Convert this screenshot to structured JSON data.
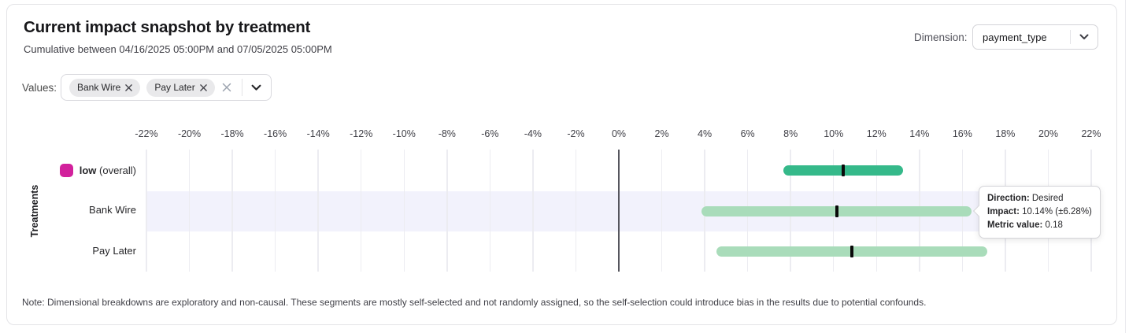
{
  "header": {
    "title": "Current impact snapshot by treatment",
    "subtitle": "Cumulative between 04/16/2025 05:00PM and 07/05/2025 05:00PM",
    "dimension_label": "Dimension:",
    "dimension_value": "payment_type"
  },
  "filters": {
    "values_label": "Values:",
    "chips": [
      "Bank Wire",
      "Pay Later"
    ]
  },
  "chart_data": {
    "type": "bar",
    "subtype": "horizontal-interval",
    "title": "Current impact snapshot by treatment",
    "xlabel": "",
    "ylabel": "Treatments",
    "xlim": [
      -22,
      22
    ],
    "x_tick_step": 2,
    "x_ticks": [
      "-22%",
      "-20%",
      "-18%",
      "-16%",
      "-14%",
      "-12%",
      "-10%",
      "-8%",
      "-6%",
      "-4%",
      "-2%",
      "0%",
      "2%",
      "4%",
      "6%",
      "8%",
      "10%",
      "12%",
      "14%",
      "16%",
      "18%",
      "20%",
      "22%"
    ],
    "grid": true,
    "colors": {
      "overall_bar": "#35b98a",
      "segment_bar": "#a9dcba",
      "legend_swatch": "#d2219c",
      "center_tick": "#0a0a0a",
      "row_highlight": "#f2f2fc"
    },
    "rows": [
      {
        "label": "low",
        "label_suffix": "(overall)",
        "is_legend": true,
        "swatch_color": "#d2219c",
        "bar_color": "#35b98a",
        "impact_pct": 10.45,
        "ci_pct": 2.8,
        "highlighted": false
      },
      {
        "label": "Bank Wire",
        "bar_color": "#a9dcba",
        "impact_pct": 10.14,
        "ci_pct": 6.28,
        "metric_value": 0.18,
        "direction": "Desired",
        "highlighted": true
      },
      {
        "label": "Pay Later",
        "bar_color": "#a9dcba",
        "impact_pct": 10.85,
        "ci_pct": 6.3,
        "highlighted": false
      }
    ]
  },
  "tooltip": {
    "direction_label": "Direction:",
    "direction_value": "Desired",
    "impact_label": "Impact:",
    "impact_value": "10.14% (±6.28%)",
    "metric_label": "Metric value:",
    "metric_value": "0.18"
  },
  "note": "Note: Dimensional breakdowns are exploratory and non-causal. These segments are mostly self-selected and not randomly assigned, so the self-selection could introduce bias in the results due to potential confounds."
}
